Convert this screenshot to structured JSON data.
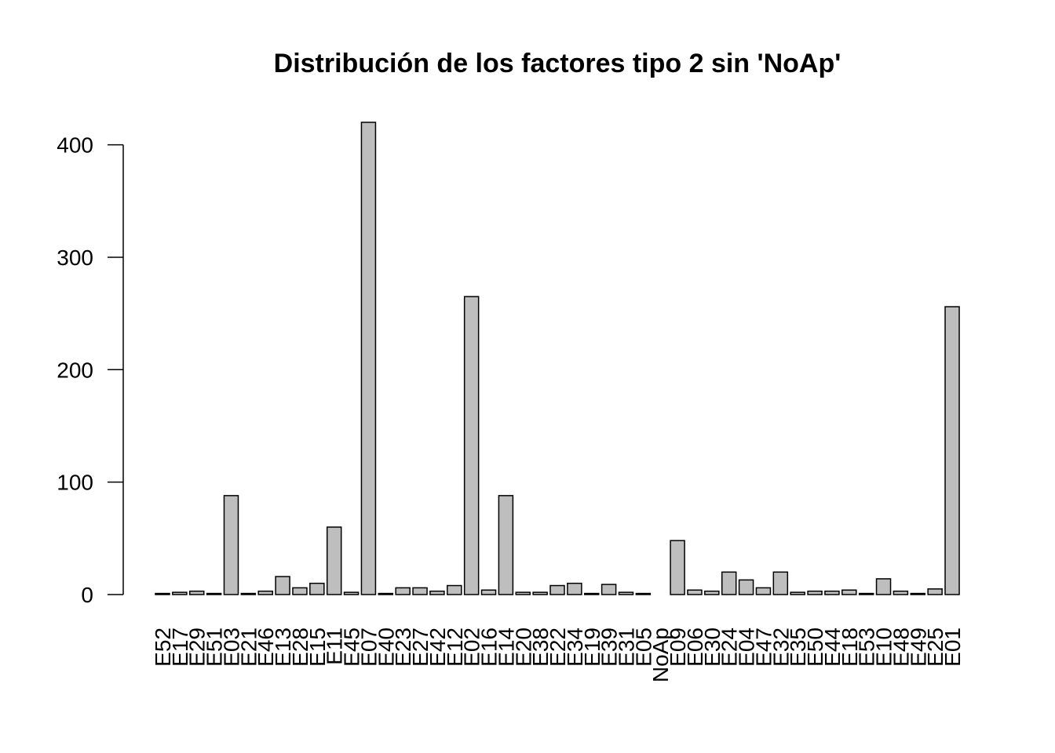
{
  "chart_data": {
    "type": "bar",
    "title": "Distribución de los factores tipo 2 sin 'NoAp'",
    "xlabel": "",
    "ylabel": "",
    "ylim": [
      0,
      420
    ],
    "yticks": [
      0,
      100,
      200,
      300,
      400
    ],
    "ytick_labels": [
      "0",
      "100",
      "200",
      "300",
      "400"
    ],
    "grid": false,
    "bar_color": "#bebebe",
    "border_color": "#000000",
    "categories": [
      "E52",
      "E17",
      "E29",
      "E51",
      "E03",
      "E21",
      "E46",
      "E13",
      "E28",
      "E15",
      "E11",
      "E45",
      "E07",
      "E40",
      "E23",
      "E27",
      "E42",
      "E12",
      "E02",
      "E16",
      "E14",
      "E20",
      "E38",
      "E22",
      "E34",
      "E19",
      "E39",
      "E31",
      "E05",
      "NoAp",
      "E09",
      "E06",
      "E30",
      "E24",
      "E04",
      "E47",
      "E32",
      "E35",
      "E50",
      "E44",
      "E18",
      "E53",
      "E10",
      "E48",
      "E49",
      "E25",
      "E01"
    ],
    "values": [
      1,
      2,
      3,
      1,
      88,
      1,
      3,
      16,
      6,
      10,
      60,
      2,
      420,
      1,
      6,
      6,
      3,
      8,
      265,
      4,
      88,
      2,
      2,
      8,
      10,
      1,
      9,
      2,
      1,
      0,
      48,
      4,
      3,
      20,
      13,
      6,
      20,
      2,
      3,
      3,
      4,
      1,
      14,
      3,
      1,
      5,
      256
    ]
  }
}
